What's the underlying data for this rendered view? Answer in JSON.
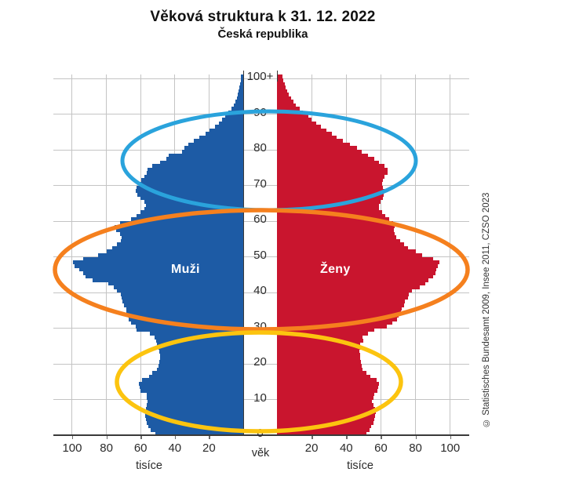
{
  "title": "Věková struktura k 31. 12. 2022",
  "subtitle": "Česká republika",
  "credit": "© Statistisches Bundesamt 2009, Insee 2011, CZSO 2023",
  "labels": {
    "male": "Muži",
    "female": "Ženy",
    "age_axis": "věk",
    "unit_left": "tisíce",
    "unit_right": "tisíce"
  },
  "colors": {
    "male_fill": "#1d5ba5",
    "female_fill": "#c9152e",
    "grid": "#c4c4c4",
    "axis": "#3a3a3a",
    "ellipse_seniors": "#2aa3dc",
    "ellipse_middle": "#f5801e",
    "ellipse_young": "#fcc40f"
  },
  "axes": {
    "age_tick_values": [
      0,
      10,
      20,
      30,
      40,
      50,
      60,
      70,
      80,
      90,
      100
    ],
    "age_tick_labels": [
      "0",
      "10",
      "20",
      "30",
      "40",
      "50",
      "60",
      "70",
      "80",
      "90",
      "100+"
    ],
    "thousand_tick_values": [
      20,
      40,
      60,
      80,
      100
    ],
    "max_thousands": 111
  },
  "annotations": [
    {
      "name": "ellipse-seniors",
      "color": "#2aa3dc",
      "age_range": [
        62,
        90
      ]
    },
    {
      "name": "ellipse-middle",
      "color": "#f5801e",
      "age_range": [
        30,
        62
      ]
    },
    {
      "name": "ellipse-young",
      "color": "#fcc40f",
      "age_range": [
        0,
        29
      ]
    }
  ],
  "chart_data": {
    "type": "bar",
    "subtype": "population-pyramid",
    "title": "Věková struktura k 31. 12. 2022",
    "subtitle": "Česká republika",
    "unit": "thousands of persons per single year of age",
    "age_min": 0,
    "age_max": 100,
    "age_top_label": "100+",
    "xlim_thousands": [
      0,
      111
    ],
    "grid": true,
    "series": [
      {
        "name": "Muži",
        "side": "left",
        "color": "#1d5ba5",
        "values": [
          51.5,
          54,
          55.5,
          56.5,
          57,
          57.5,
          57.5,
          57,
          56.5,
          56,
          56.5,
          56.5,
          60,
          60.5,
          61,
          59,
          55,
          53,
          50.5,
          49.5,
          49,
          48.5,
          48.5,
          49,
          49.5,
          50.5,
          51,
          52,
          54.5,
          62.5,
          63,
          65.5,
          67,
          67.5,
          68.5,
          68.5,
          69.5,
          70.5,
          71,
          71.5,
          74,
          75.5,
          79,
          88,
          92,
          93.5,
          96,
          98.5,
          99.5,
          93.5,
          85,
          80,
          76.5,
          74,
          71.5,
          71,
          72,
          74.5,
          75,
          72,
          65.5,
          62.5,
          60,
          58,
          57,
          58,
          60,
          62,
          63,
          62.5,
          61,
          59.5,
          58,
          56.5,
          56,
          53,
          48.5,
          45,
          43.5,
          36,
          34.5,
          32,
          29,
          25.5,
          22,
          19.5,
          16.5,
          14,
          12.5,
          10.5,
          8.5,
          7,
          5.5,
          4.6,
          3.8,
          3.2,
          2.6,
          2.2,
          1.8,
          1.4,
          1.2
        ]
      },
      {
        "name": "Ženy",
        "side": "right",
        "color": "#c9152e",
        "values": [
          51.5,
          53.5,
          54.5,
          55.5,
          56,
          56.5,
          57,
          56.5,
          55.5,
          55,
          55.5,
          56,
          58,
          58.5,
          59,
          57.5,
          54,
          51.5,
          49.5,
          49,
          48.5,
          48,
          48,
          47.5,
          48.5,
          48,
          50,
          49.5,
          52.5,
          56,
          63.5,
          66.5,
          69.5,
          70,
          71.5,
          72,
          73.5,
          74,
          75.5,
          76,
          78,
          82.5,
          85.5,
          87.5,
          90,
          91.5,
          92,
          93,
          94,
          90,
          84,
          80,
          75.5,
          73.5,
          71,
          69,
          68,
          67.5,
          68,
          67,
          65,
          62.5,
          60.5,
          59,
          59,
          60,
          61,
          61.5,
          62,
          61,
          60.5,
          61,
          62,
          64,
          64,
          62,
          59,
          56,
          52.5,
          49,
          46,
          42,
          38,
          34.5,
          31.5,
          28.5,
          25.5,
          22.5,
          20,
          18,
          15,
          13,
          11,
          9.5,
          8.2,
          7,
          6,
          5.2,
          4.4,
          3.6,
          3
        ]
      }
    ]
  }
}
